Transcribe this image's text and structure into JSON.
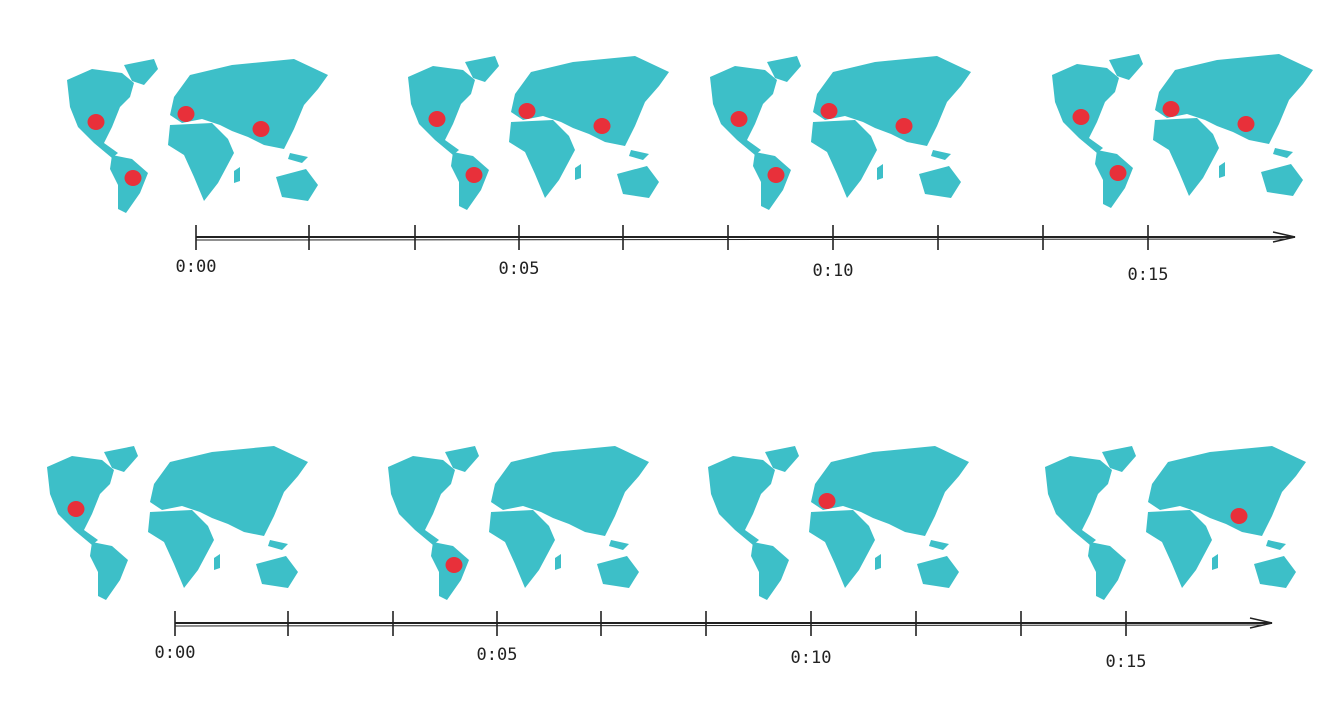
{
  "colors": {
    "land": "#3dbfc8",
    "marker": "#e8303a",
    "axis": "#222222"
  },
  "locations": [
    "north-america",
    "europe",
    "east-asia",
    "south-america"
  ],
  "timelines": [
    {
      "tick_labels": [
        "0:00",
        "0:05",
        "0:10",
        "0:15"
      ],
      "frames": [
        {
          "markers": [
            "north-america",
            "europe",
            "east-asia",
            "south-america"
          ]
        },
        {
          "markers": [
            "north-america",
            "europe",
            "east-asia",
            "south-america"
          ]
        },
        {
          "markers": [
            "north-america",
            "europe",
            "east-asia",
            "south-america"
          ]
        },
        {
          "markers": [
            "north-america",
            "europe",
            "east-asia",
            "south-america"
          ]
        }
      ]
    },
    {
      "tick_labels": [
        "0:00",
        "0:05",
        "0:10",
        "0:15"
      ],
      "frames": [
        {
          "markers": [
            "north-america"
          ]
        },
        {
          "markers": [
            "south-america"
          ]
        },
        {
          "markers": [
            "europe"
          ]
        },
        {
          "markers": [
            "east-asia"
          ]
        }
      ]
    }
  ]
}
